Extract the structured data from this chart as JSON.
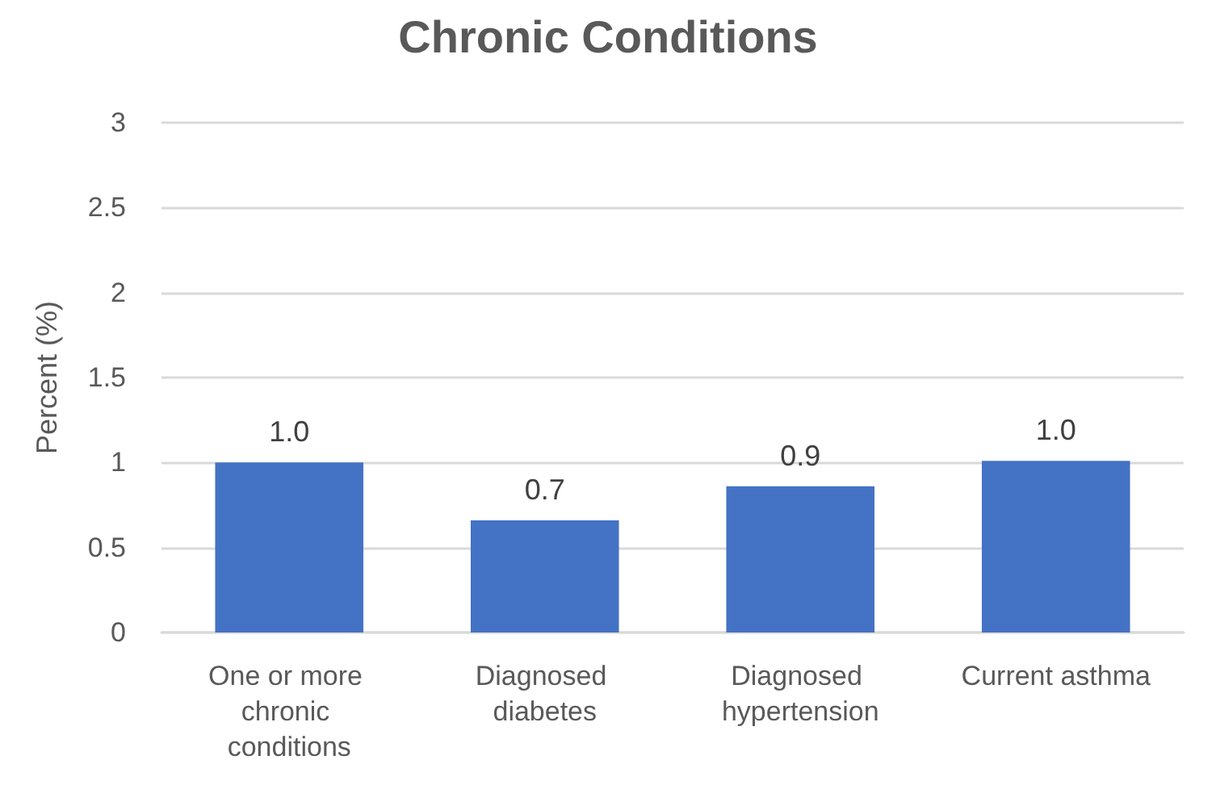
{
  "chart_data": {
    "type": "bar",
    "title": "Chronic Conditions",
    "ylabel": "Percent (%)",
    "categories": [
      "One or more chronic conditions",
      "Diagnosed diabetes",
      "Diagnosed hypertension",
      "Current asthma"
    ],
    "values": [
      1.0,
      0.66,
      0.86,
      1.01
    ],
    "value_labels": [
      "1.0",
      "0.7",
      "0.9",
      "1.0"
    ],
    "color": "#4472c4",
    "ylim": [
      0,
      3
    ],
    "yticks": [
      0,
      0.5,
      1,
      1.5,
      2,
      2.5,
      3
    ],
    "grid": "y"
  }
}
